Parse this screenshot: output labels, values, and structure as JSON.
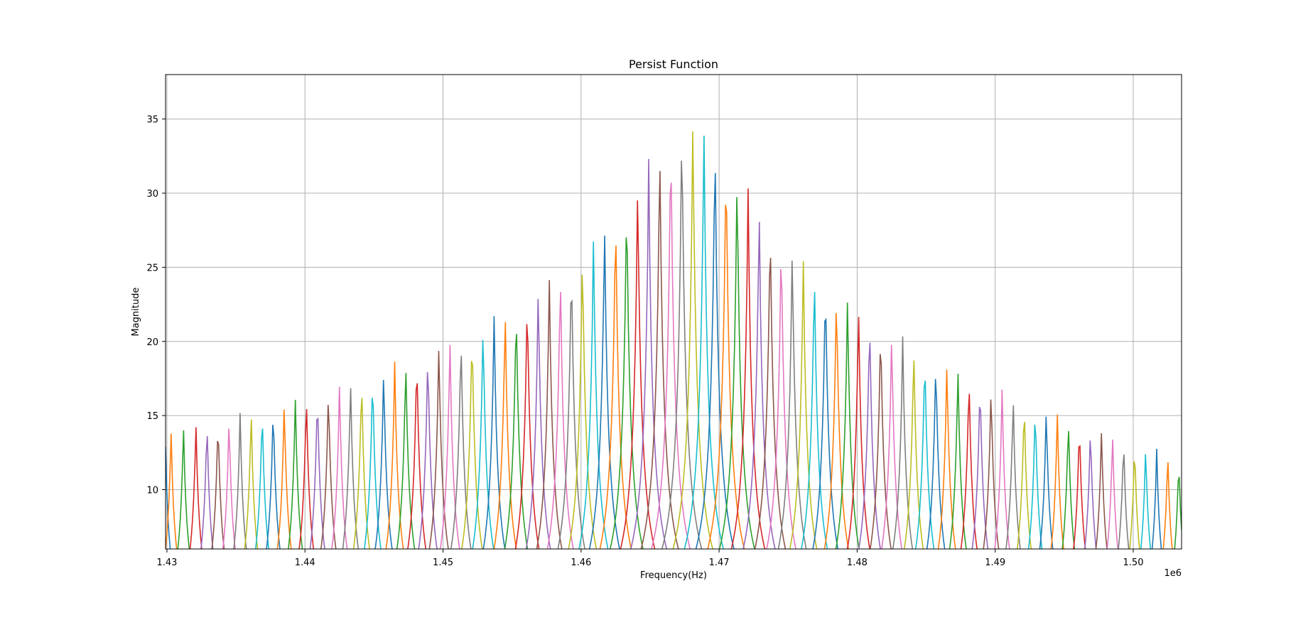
{
  "chart_data": {
    "type": "line",
    "title": "Persist Function",
    "xlabel": "Frequency(Hz)",
    "ylabel": "Magnitude",
    "x_offset_label": "1e6",
    "xlim": [
      1.4299,
      1.5035
    ],
    "ylim": [
      6,
      38
    ],
    "x_ticks": [
      1.43,
      1.44,
      1.45,
      1.46,
      1.47,
      1.48,
      1.49,
      1.5
    ],
    "x_tick_labels": [
      "1.43",
      "1.44",
      "1.45",
      "1.46",
      "1.47",
      "1.48",
      "1.49",
      "1.50"
    ],
    "y_ticks": [
      10,
      15,
      20,
      25,
      30,
      35
    ],
    "y_tick_labels": [
      "10",
      "15",
      "20",
      "25",
      "30",
      "35"
    ],
    "grid": true,
    "legend": "none",
    "series_peaks": [
      {
        "x": 1.4299,
        "y": 12.9
      },
      {
        "x": 1.4303,
        "y": 14.2
      },
      {
        "x": 1.4312,
        "y": 14.4
      },
      {
        "x": 1.4321,
        "y": 14.6
      },
      {
        "x": 1.4329,
        "y": 14.8
      },
      {
        "x": 1.4337,
        "y": 15.0
      },
      {
        "x": 1.4345,
        "y": 15.1
      },
      {
        "x": 1.4353,
        "y": 15.3
      },
      {
        "x": 1.4361,
        "y": 15.5
      },
      {
        "x": 1.4369,
        "y": 15.7
      },
      {
        "x": 1.4377,
        "y": 15.9
      },
      {
        "x": 1.4385,
        "y": 16.1
      },
      {
        "x": 1.4393,
        "y": 16.3
      },
      {
        "x": 1.4401,
        "y": 16.6
      },
      {
        "x": 1.4409,
        "y": 16.8
      },
      {
        "x": 1.4417,
        "y": 17.0
      },
      {
        "x": 1.4425,
        "y": 17.3
      },
      {
        "x": 1.4433,
        "y": 17.5
      },
      {
        "x": 1.4441,
        "y": 17.8
      },
      {
        "x": 1.4449,
        "y": 18.1
      },
      {
        "x": 1.4457,
        "y": 18.4
      },
      {
        "x": 1.4465,
        "y": 18.7
      },
      {
        "x": 1.4473,
        "y": 19.0
      },
      {
        "x": 1.4481,
        "y": 19.3
      },
      {
        "x": 1.4489,
        "y": 19.6
      },
      {
        "x": 1.4497,
        "y": 20.0
      },
      {
        "x": 1.4505,
        "y": 20.3
      },
      {
        "x": 1.4513,
        "y": 20.7
      },
      {
        "x": 1.4521,
        "y": 21.1
      },
      {
        "x": 1.4529,
        "y": 21.5
      },
      {
        "x": 1.4537,
        "y": 21.9
      },
      {
        "x": 1.4545,
        "y": 22.4
      },
      {
        "x": 1.4553,
        "y": 22.8
      },
      {
        "x": 1.4561,
        "y": 23.4
      },
      {
        "x": 1.4569,
        "y": 23.9
      },
      {
        "x": 1.4577,
        "y": 24.5
      },
      {
        "x": 1.4585,
        "y": 25.1
      },
      {
        "x": 1.4593,
        "y": 25.8
      },
      {
        "x": 1.4601,
        "y": 26.5
      },
      {
        "x": 1.4609,
        "y": 27.3
      },
      {
        "x": 1.4617,
        "y": 28.2
      },
      {
        "x": 1.4625,
        "y": 29.1
      },
      {
        "x": 1.4633,
        "y": 30.2
      },
      {
        "x": 1.4641,
        "y": 31.2
      },
      {
        "x": 1.4649,
        "y": 32.4
      },
      {
        "x": 1.4657,
        "y": 33.5
      },
      {
        "x": 1.4665,
        "y": 34.5
      },
      {
        "x": 1.4673,
        "y": 35.2
      },
      {
        "x": 1.4681,
        "y": 35.3
      },
      {
        "x": 1.4689,
        "y": 34.8
      },
      {
        "x": 1.4697,
        "y": 34.1
      },
      {
        "x": 1.4705,
        "y": 33.0
      },
      {
        "x": 1.4713,
        "y": 31.8
      },
      {
        "x": 1.4721,
        "y": 30.6
      },
      {
        "x": 1.4729,
        "y": 29.5
      },
      {
        "x": 1.4737,
        "y": 28.5
      },
      {
        "x": 1.4745,
        "y": 27.5
      },
      {
        "x": 1.4753,
        "y": 26.6
      },
      {
        "x": 1.4761,
        "y": 25.8
      },
      {
        "x": 1.4769,
        "y": 25.1
      },
      {
        "x": 1.4777,
        "y": 24.4
      },
      {
        "x": 1.4785,
        "y": 23.7
      },
      {
        "x": 1.4793,
        "y": 23.1
      },
      {
        "x": 1.4801,
        "y": 22.5
      },
      {
        "x": 1.4809,
        "y": 21.9
      },
      {
        "x": 1.4817,
        "y": 21.4
      },
      {
        "x": 1.4825,
        "y": 20.9
      },
      {
        "x": 1.4833,
        "y": 20.4
      },
      {
        "x": 1.4841,
        "y": 19.9
      },
      {
        "x": 1.4849,
        "y": 19.5
      },
      {
        "x": 1.4857,
        "y": 19.1
      },
      {
        "x": 1.4865,
        "y": 18.7
      },
      {
        "x": 1.4873,
        "y": 18.3
      },
      {
        "x": 1.4881,
        "y": 17.9
      },
      {
        "x": 1.4889,
        "y": 17.6
      },
      {
        "x": 1.4897,
        "y": 17.2
      },
      {
        "x": 1.4905,
        "y": 16.9
      },
      {
        "x": 1.4913,
        "y": 16.5
      },
      {
        "x": 1.4921,
        "y": 16.2
      },
      {
        "x": 1.4929,
        "y": 15.9
      },
      {
        "x": 1.4937,
        "y": 15.6
      },
      {
        "x": 1.4945,
        "y": 15.3
      },
      {
        "x": 1.4953,
        "y": 15.0
      },
      {
        "x": 1.4961,
        "y": 14.7
      },
      {
        "x": 1.4969,
        "y": 14.4
      },
      {
        "x": 1.4977,
        "y": 14.1
      },
      {
        "x": 1.4985,
        "y": 13.9
      },
      {
        "x": 1.4993,
        "y": 13.6
      },
      {
        "x": 1.5001,
        "y": 13.3
      },
      {
        "x": 1.5009,
        "y": 13.1
      },
      {
        "x": 1.5017,
        "y": 12.8
      },
      {
        "x": 1.5025,
        "y": 12.6
      },
      {
        "x": 1.5033,
        "y": 12.2
      }
    ],
    "colors": [
      "#1f77b4",
      "#ff7f0e",
      "#2ca02c",
      "#d62728",
      "#9467bd",
      "#8c564b",
      "#e377c2",
      "#7f7f7f",
      "#bcbd22",
      "#17becf"
    ]
  }
}
